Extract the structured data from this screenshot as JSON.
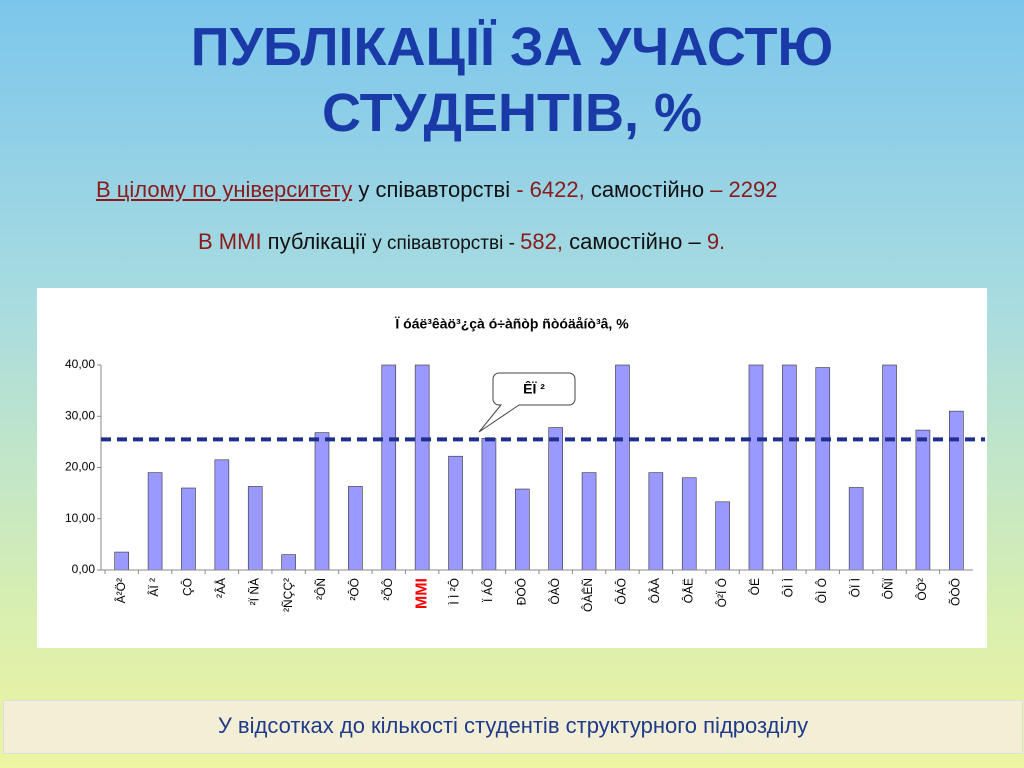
{
  "slide": {
    "title": [
      "ПУБЛІКАЦІЇ ЗА УЧАСТЮ",
      "СТУДЕНТІВ, %"
    ],
    "lines": [
      [
        "В цілому по університету",
        " у співавторстві ",
        "- 6422,",
        " самостійно ",
        "– 2292"
      ],
      [
        "В ММІ",
        " публікації ",
        "у співавторстві - ",
        "582,",
        " самостійно – ",
        "9."
      ]
    ],
    "footer": "У відсотках до кількості студентів структурного підрозділу"
  },
  "chart_data": {
    "type": "bar",
    "title": "Ï óáë³êàö³¿çà ó÷àñòþ ñòóäåíò³â, %",
    "annotation": "ÊÏ ²",
    "categories": [
      "Â²Ö²",
      "ÂÏ ²",
      "ÇÔ",
      "²ÂÅ",
      "²Ï ÑÀ",
      "²ÑÇÇ²",
      "²ÔÑ",
      "²ÔÔ",
      "²ÕÔ",
      "MMI",
      "Ì Ì ²Ô",
      "Ï ÁÔ",
      "ÐÒÔ",
      "ÔÀÔ",
      "ÔÀÊÑ",
      "ÔÁÔ",
      "ÔÂÀ",
      "ÔÅË",
      "Ô²Ï Ô",
      "ÔË",
      "ÔÌ Ì",
      "ÔÌ Ô",
      "ÔÏ Ì",
      "ÔÑÏ",
      "ÔÖ²",
      "ÕÒÔ"
    ],
    "values": [
      3.5,
      19,
      16,
      21.5,
      16.3,
      3,
      26.8,
      16.3,
      40,
      40,
      22.2,
      25.7,
      15.8,
      27.8,
      19,
      40,
      19,
      18,
      13.3,
      40,
      40,
      39.5,
      16.1,
      40,
      27.3,
      31
    ],
    "color": "#9999ff",
    "highlight_category_color": "#ff0000",
    "reference_line": 25.5,
    "reference_color": "#1f2f8f",
    "ylim": [
      0,
      40
    ],
    "yticks": [
      {
        "value": 0,
        "label": "0,00"
      },
      {
        "value": 10,
        "label": "10,00"
      },
      {
        "value": 20,
        "label": "20,00"
      },
      {
        "value": 30,
        "label": "30,00"
      },
      {
        "value": 40,
        "label": "40,00"
      }
    ],
    "grid": false
  }
}
